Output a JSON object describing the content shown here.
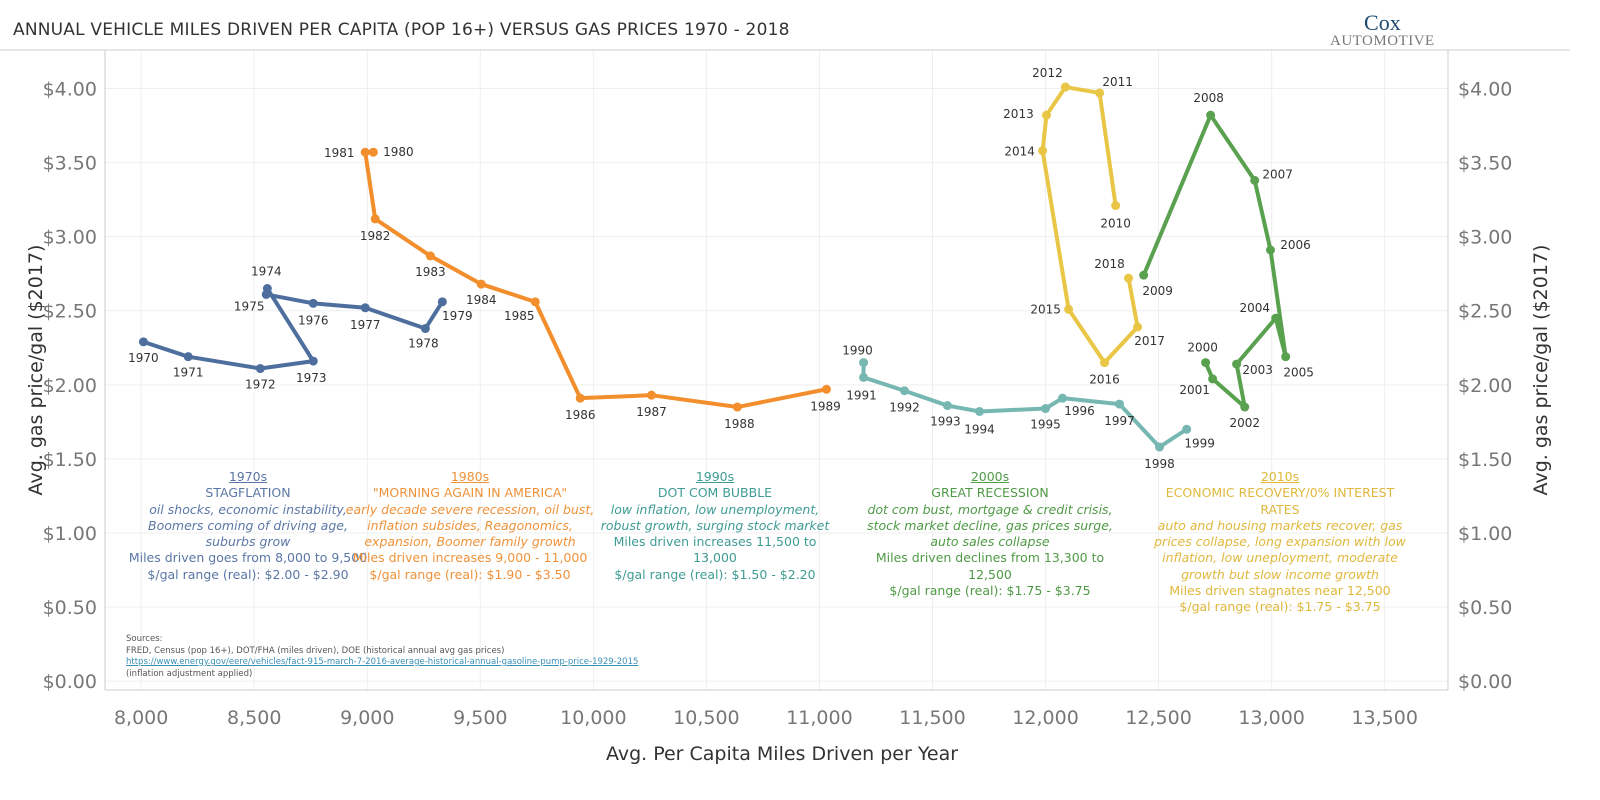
{
  "title": "ANNUAL VEHICLE MILES DRIVEN PER CAPITA (POP 16+) VERSUS GAS PRICES 1970 - 2018",
  "logo": {
    "line1": "Cox",
    "line2": "Automotive"
  },
  "chart_data": {
    "type": "line",
    "title": "ANNUAL VEHICLE MILES DRIVEN PER CAPITA (POP 16+) VERSUS GAS PRICES 1970 - 2018",
    "xlabel": "Avg. Per Capita Miles Driven per Year",
    "ylabel": "Avg. gas price/gal ($2017)",
    "ylabel_right": "Avg. gas price/gal ($2017)",
    "xlim": [
      7840,
      13780
    ],
    "ylim": [
      -0.06,
      4.26
    ],
    "x_ticks": [
      "8,000",
      "8,500",
      "9,000",
      "9,500",
      "10,000",
      "10,500",
      "11,000",
      "11,500",
      "12,000",
      "12,500",
      "13,000",
      "13,500"
    ],
    "x_tick_values": [
      8000,
      8500,
      9000,
      9500,
      10000,
      10500,
      11000,
      11500,
      12000,
      12500,
      13000,
      13500
    ],
    "y_ticks": [
      "$0.00",
      "$0.50",
      "$1.00",
      "$1.50",
      "$2.00",
      "$2.50",
      "$3.00",
      "$3.50",
      "$4.00"
    ],
    "y_tick_values": [
      0,
      0.5,
      1,
      1.5,
      2,
      2.5,
      3,
      3.5,
      4
    ],
    "grid": true,
    "series": [
      {
        "decade": "1970s",
        "color": "#4e6f9e",
        "points": [
          {
            "year": "1970",
            "x": 8010,
            "y": 2.29
          },
          {
            "year": "1971",
            "x": 8208,
            "y": 2.19
          },
          {
            "year": "1972",
            "x": 8527,
            "y": 2.11
          },
          {
            "year": "1973",
            "x": 8761,
            "y": 2.16
          },
          {
            "year": "1974",
            "x": 8558,
            "y": 2.65
          },
          {
            "year": "1975",
            "x": 8553,
            "y": 2.61
          },
          {
            "year": "1976",
            "x": 8761,
            "y": 2.55
          },
          {
            "year": "1977",
            "x": 8991,
            "y": 2.52
          },
          {
            "year": "1978",
            "x": 9257,
            "y": 2.38
          },
          {
            "year": "1979",
            "x": 9332,
            "y": 2.56
          }
        ]
      },
      {
        "decade": "1980s",
        "color": "#f28e2b",
        "points": [
          {
            "year": "1980",
            "x": 9027,
            "y": 3.57
          },
          {
            "year": "1981",
            "x": 8991,
            "y": 3.57
          },
          {
            "year": "1982",
            "x": 9035,
            "y": 3.12
          },
          {
            "year": "1983",
            "x": 9279,
            "y": 2.87
          },
          {
            "year": "1984",
            "x": 9504,
            "y": 2.68
          },
          {
            "year": "1985",
            "x": 9743,
            "y": 2.56
          },
          {
            "year": "1986",
            "x": 9942,
            "y": 1.91
          },
          {
            "year": "1987",
            "x": 10257,
            "y": 1.93
          },
          {
            "year": "1988",
            "x": 10637,
            "y": 1.85
          },
          {
            "year": "1989",
            "x": 11031,
            "y": 1.97
          }
        ]
      },
      {
        "decade": "1990s",
        "color": "#76b7b2",
        "points": [
          {
            "year": "1990",
            "x": 11195,
            "y": 2.15
          },
          {
            "year": "1991",
            "x": 11195,
            "y": 2.05
          },
          {
            "year": "1992",
            "x": 11376,
            "y": 1.96
          },
          {
            "year": "1993",
            "x": 11566,
            "y": 1.86
          },
          {
            "year": "1994",
            "x": 11708,
            "y": 1.82
          },
          {
            "year": "1995",
            "x": 12000,
            "y": 1.84
          },
          {
            "year": "1996",
            "x": 12075,
            "y": 1.91
          },
          {
            "year": "1997",
            "x": 12327,
            "y": 1.87
          },
          {
            "year": "1998",
            "x": 12504,
            "y": 1.58
          },
          {
            "year": "1999",
            "x": 12624,
            "y": 1.7
          }
        ]
      },
      {
        "decade": "2000s",
        "color": "#59a14f",
        "points": [
          {
            "year": "2000",
            "x": 12708,
            "y": 2.15
          },
          {
            "year": "2001",
            "x": 12739,
            "y": 2.04
          },
          {
            "year": "2002",
            "x": 12881,
            "y": 1.85
          },
          {
            "year": "2003",
            "x": 12845,
            "y": 2.14
          },
          {
            "year": "2004",
            "x": 13018,
            "y": 2.45
          },
          {
            "year": "2005",
            "x": 13062,
            "y": 2.19
          },
          {
            "year": "2006",
            "x": 12995,
            "y": 2.91
          },
          {
            "year": "2007",
            "x": 12925,
            "y": 3.38
          },
          {
            "year": "2008",
            "x": 12730,
            "y": 3.82
          },
          {
            "year": "2009",
            "x": 12434,
            "y": 2.74
          }
        ]
      },
      {
        "decade": "2010s",
        "color": "#e9c646",
        "points": [
          {
            "year": "2010",
            "x": 12310,
            "y": 3.21
          },
          {
            "year": "2011",
            "x": 12239,
            "y": 3.97
          },
          {
            "year": "2012",
            "x": 12088,
            "y": 4.01
          },
          {
            "year": "2013",
            "x": 12004,
            "y": 3.82
          },
          {
            "year": "2014",
            "x": 11987,
            "y": 3.58
          },
          {
            "year": "2015",
            "x": 12102,
            "y": 2.51
          },
          {
            "year": "2016",
            "x": 12261,
            "y": 2.15
          },
          {
            "year": "2017",
            "x": 12407,
            "y": 2.39
          },
          {
            "year": "2018",
            "x": 12367,
            "y": 2.72
          }
        ]
      }
    ]
  },
  "annotations": [
    {
      "decade": "1970s",
      "heading": "STAGFLATION",
      "desc": "oil shocks, economic instability, Boomers coming of driving age, suburbs grow",
      "miles": "Miles driven goes from 8,000 to 9,500",
      "range": "$/gal range (real):  $2.00 - $2.90",
      "color": "#5b77a6"
    },
    {
      "decade": "1980s",
      "heading": "\"MORNING AGAIN IN AMERICA\"",
      "desc": "early decade severe recession, oil bust, inflation subsides, Reagonomics, expansion, Boomer family growth",
      "miles": "Miles driven increases 9,000 - 11,000",
      "range": "$/gal range (real):  $1.90 - $3.50",
      "color": "#f0923a"
    },
    {
      "decade": "1990s",
      "heading": "DOT COM BUBBLE",
      "desc": "low inflation, low unemployment, robust growth, surging stock market",
      "miles": "Miles driven increases 11,500 to 13,000",
      "range": "$/gal range (real):  $1.50 - $2.20",
      "color": "#3f9c94"
    },
    {
      "decade": "2000s",
      "heading": "GREAT RECESSION",
      "desc": "dot com bust, mortgage & credit crisis, stock market decline, gas prices surge, auto sales collapse",
      "miles": "Miles driven declines from 13,300 to 12,500",
      "range": "$/gal range (real):  $1.75 - $3.75",
      "color": "#4f9a45"
    },
    {
      "decade": "2010s",
      "heading": "ECONOMIC RECOVERY/0% INTEREST RATES",
      "desc": "auto and housing markets recover, gas prices collapse, long expansion with low inflation, low uneployment, moderate growth but slow income growth",
      "miles": "Miles driven stagnates near 12,500",
      "range": "$/gal range (real):  $1.75 - $3.75",
      "color": "#e0b83c"
    }
  ],
  "sources": {
    "label": "Sources:",
    "line1": "FRED, Census (pop 16+), DOT/FHA (miles driven), DOE (historical annual avg gas prices)",
    "link": "https://www.energy.gov/eere/vehicles/fact-915-march-7-2016-average-historical-annual-gasoline-pump-price-1929-2015",
    "note": "(inflation adjustment applied)"
  }
}
